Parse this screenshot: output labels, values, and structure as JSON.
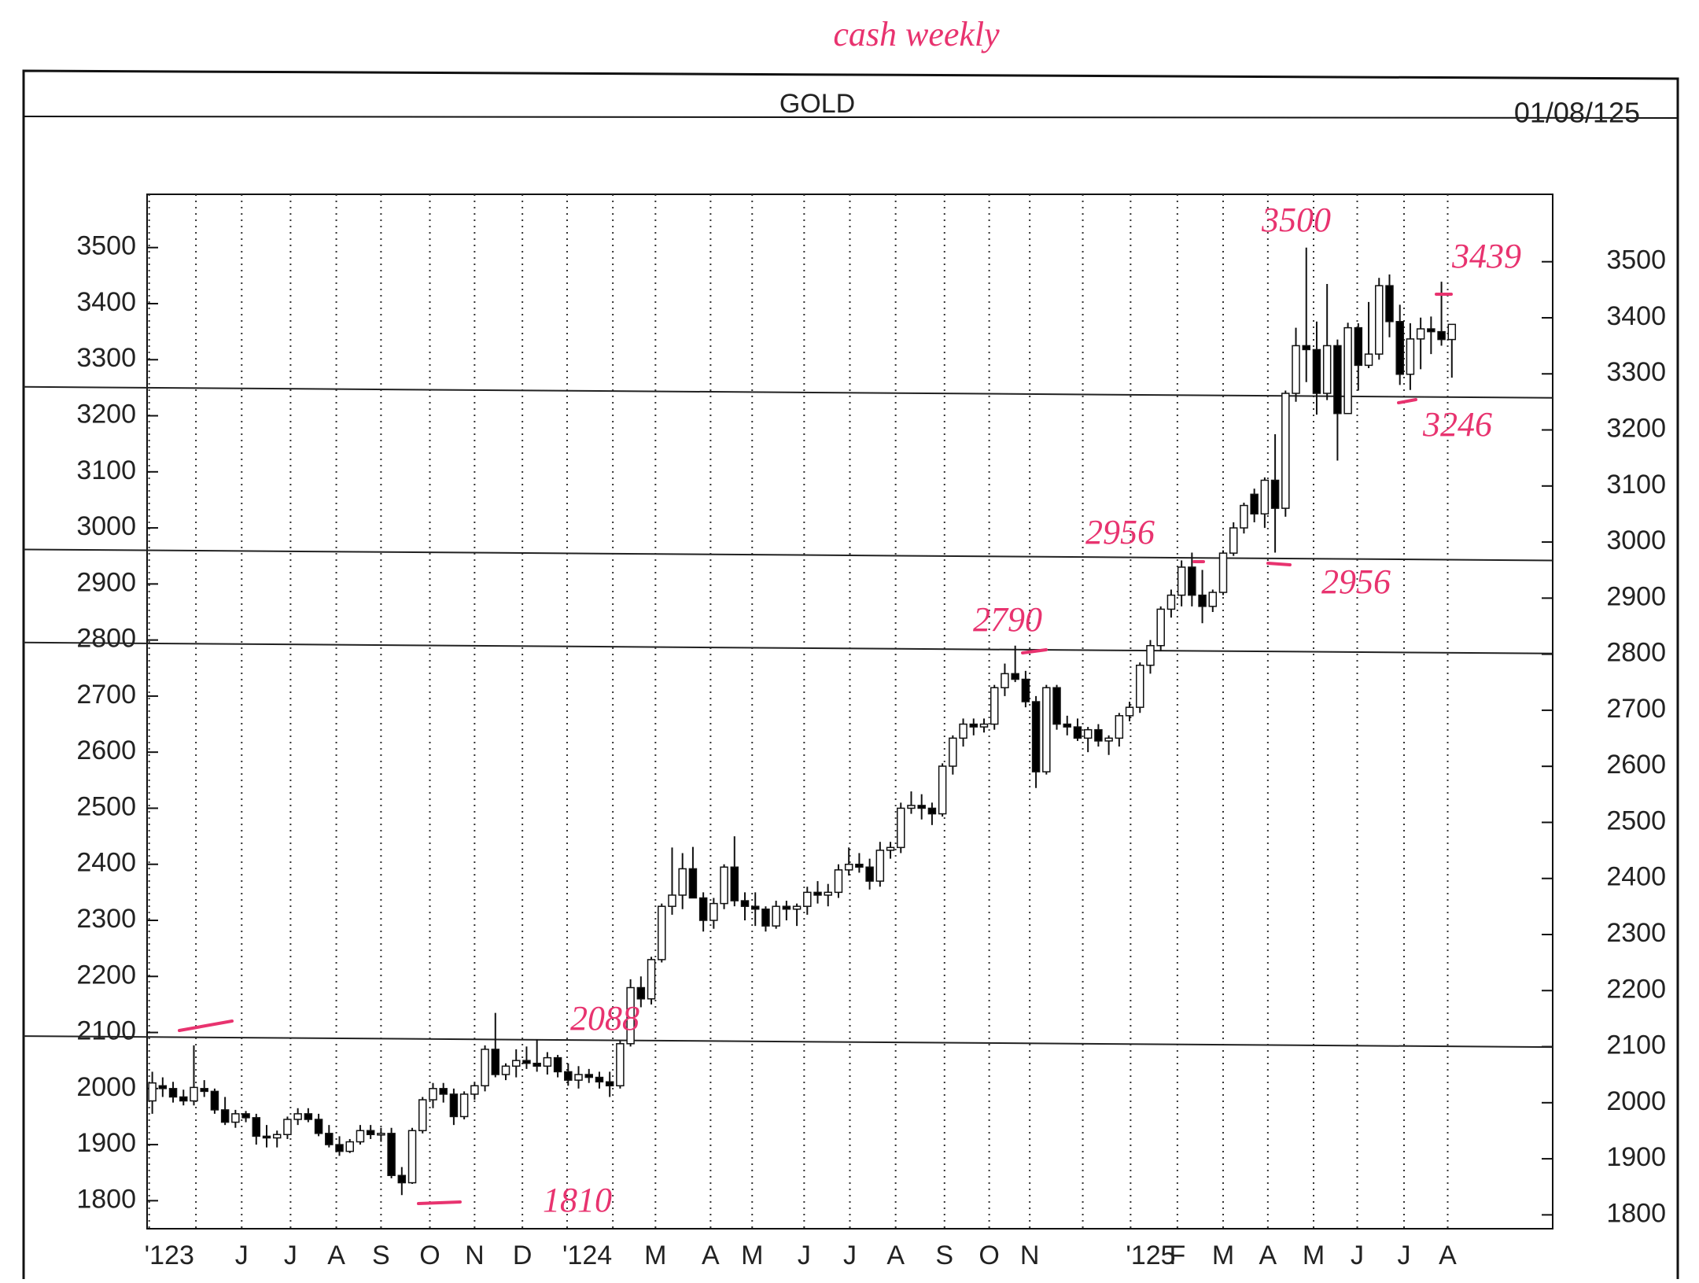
{
  "chart_data": {
    "type": "candlestick",
    "note_title": "cash weekly",
    "title": "GOLD",
    "date": "01/08/125",
    "open": [
      1978,
      2005,
      2000,
      1985,
      1978,
      2000,
      1995,
      1962,
      1940,
      1955,
      1948,
      1915,
      1912,
      1918,
      1945,
      1955,
      1945,
      1920,
      1900,
      1888,
      1905,
      1925,
      1918,
      1920,
      1845,
      1832,
      1925,
      1980,
      2000,
      1990,
      1950,
      1990,
      2005,
      2070,
      2025,
      2040,
      2050,
      2045,
      2040,
      2055,
      2030,
      2015,
      2025,
      2020,
      2012,
      2005,
      2080,
      2180,
      2160,
      2230,
      2325,
      2345,
      2392,
      2340,
      2300,
      2330,
      2395,
      2335,
      2325,
      2320,
      2290,
      2325,
      2320,
      2325,
      2350,
      2345,
      2350,
      2390,
      2400,
      2395,
      2370,
      2425,
      2430,
      2500,
      2505,
      2500,
      2490,
      2575,
      2625,
      2650,
      2645,
      2650,
      2715,
      2740,
      2730,
      2690,
      2565,
      2715,
      2650,
      2645,
      2625,
      2640,
      2620,
      2625,
      2665,
      2680,
      2755,
      2790,
      2855,
      2880,
      2930,
      2880,
      2860,
      2885,
      2955,
      3000,
      3060,
      3025,
      3085,
      3035,
      3240,
      3325,
      3318,
      3240,
      3325,
      3204,
      3357,
      3290,
      3310,
      3432,
      3368,
      3274,
      3337,
      3355,
      3350,
      3336
    ],
    "high": [
      2030,
      2020,
      2012,
      1998,
      2077,
      2015,
      2000,
      1985,
      1962,
      1960,
      1955,
      1935,
      1925,
      1950,
      1965,
      1965,
      1955,
      1935,
      1915,
      1910,
      1935,
      1935,
      1930,
      1930,
      1860,
      1930,
      1985,
      2010,
      2010,
      2000,
      1995,
      2010,
      2077,
      2135,
      2045,
      2070,
      2075,
      2088,
      2065,
      2060,
      2045,
      2040,
      2035,
      2030,
      2030,
      2085,
      2195,
      2200,
      2235,
      2330,
      2430,
      2420,
      2431,
      2350,
      2340,
      2400,
      2450,
      2350,
      2350,
      2325,
      2335,
      2335,
      2330,
      2360,
      2370,
      2365,
      2400,
      2430,
      2420,
      2410,
      2440,
      2440,
      2510,
      2530,
      2525,
      2510,
      2580,
      2630,
      2660,
      2660,
      2660,
      2720,
      2758,
      2790,
      2745,
      2700,
      2720,
      2720,
      2665,
      2660,
      2645,
      2650,
      2630,
      2670,
      2690,
      2760,
      2800,
      2860,
      2890,
      2942,
      2956,
      2925,
      2890,
      2960,
      3010,
      3045,
      3070,
      3090,
      3167,
      3245,
      3357,
      3500,
      3368,
      3435,
      3336,
      3366,
      3365,
      3403,
      3446,
      3452,
      3398,
      3365,
      3375,
      3377,
      3439,
      3363
    ],
    "low": [
      1955,
      1985,
      1975,
      1970,
      1970,
      1985,
      1955,
      1935,
      1930,
      1940,
      1900,
      1895,
      1895,
      1910,
      1935,
      1940,
      1915,
      1895,
      1880,
      1885,
      1900,
      1910,
      1905,
      1840,
      1810,
      1830,
      1920,
      1965,
      1975,
      1935,
      1945,
      1980,
      1995,
      2020,
      2015,
      2020,
      2035,
      2030,
      2025,
      2020,
      2005,
      2000,
      2010,
      2000,
      1985,
      2000,
      2075,
      2145,
      2150,
      2225,
      2310,
      2320,
      2345,
      2280,
      2285,
      2320,
      2325,
      2300,
      2290,
      2280,
      2285,
      2300,
      2290,
      2310,
      2330,
      2325,
      2340,
      2380,
      2385,
      2355,
      2360,
      2410,
      2420,
      2490,
      2480,
      2470,
      2485,
      2560,
      2610,
      2630,
      2635,
      2640,
      2700,
      2725,
      2680,
      2536,
      2560,
      2640,
      2630,
      2620,
      2600,
      2610,
      2595,
      2610,
      2655,
      2670,
      2740,
      2780,
      2840,
      2860,
      2860,
      2830,
      2850,
      2880,
      2950,
      2990,
      3010,
      3000,
      2956,
      3020,
      3225,
      3260,
      3202,
      3228,
      3120,
      3204,
      3245,
      3285,
      3300,
      3340,
      3255,
      3246,
      3283,
      3310,
      3325,
      3268
    ],
    "close": [
      2010,
      2000,
      1985,
      1978,
      2002,
      1995,
      1962,
      1940,
      1955,
      1948,
      1915,
      1912,
      1918,
      1945,
      1955,
      1945,
      1920,
      1900,
      1888,
      1905,
      1925,
      1918,
      1920,
      1845,
      1832,
      1925,
      1980,
      2000,
      1990,
      1950,
      1990,
      2005,
      2070,
      2025,
      2040,
      2050,
      2045,
      2040,
      2055,
      2030,
      2015,
      2025,
      2020,
      2012,
      2005,
      2080,
      2180,
      2160,
      2230,
      2325,
      2345,
      2392,
      2340,
      2300,
      2330,
      2395,
      2335,
      2325,
      2320,
      2290,
      2325,
      2320,
      2325,
      2350,
      2345,
      2350,
      2390,
      2400,
      2395,
      2370,
      2425,
      2430,
      2500,
      2505,
      2500,
      2490,
      2575,
      2625,
      2650,
      2645,
      2650,
      2715,
      2740,
      2730,
      2690,
      2565,
      2715,
      2650,
      2645,
      2625,
      2640,
      2620,
      2625,
      2665,
      2680,
      2755,
      2790,
      2855,
      2880,
      2930,
      2880,
      2860,
      2885,
      2955,
      3000,
      3040,
      3025,
      3085,
      3035,
      3240,
      3325,
      3318,
      3240,
      3325,
      3204,
      3357,
      3290,
      3310,
      3432,
      3368,
      3274,
      3337,
      3355,
      3350,
      3336,
      3363
    ],
    "up_color": "#ffffff",
    "down_color": "#000000",
    "xlim": [
      -0.5,
      134.7
    ],
    "xticks": [
      {
        "value": -0.3,
        "label": "'123"
      },
      {
        "value": 8.6,
        "label": "J"
      },
      {
        "value": 13.3,
        "label": "J"
      },
      {
        "value": 17.7,
        "label": "A"
      },
      {
        "value": 22.0,
        "label": "S"
      },
      {
        "value": 26.7,
        "label": "O"
      },
      {
        "value": 31.0,
        "label": "N"
      },
      {
        "value": 35.6,
        "label": "D"
      },
      {
        "value": 39.9,
        "label": "'124"
      },
      {
        "value": 48.4,
        "label": "M"
      },
      {
        "value": 53.7,
        "label": "A"
      },
      {
        "value": 57.7,
        "label": "M"
      },
      {
        "value": 62.7,
        "label": "J"
      },
      {
        "value": 67.1,
        "label": "J"
      },
      {
        "value": 71.5,
        "label": "A"
      },
      {
        "value": 76.2,
        "label": "S"
      },
      {
        "value": 80.5,
        "label": "O"
      },
      {
        "value": 84.4,
        "label": "N"
      },
      {
        "value": 94.1,
        "label": "'125"
      },
      {
        "value": 98.6,
        "label": "F"
      },
      {
        "value": 103.0,
        "label": "M"
      },
      {
        "value": 107.3,
        "label": "A"
      },
      {
        "value": 111.7,
        "label": "M"
      },
      {
        "value": 115.9,
        "label": "J"
      },
      {
        "value": 120.4,
        "label": "J"
      },
      {
        "value": 124.6,
        "label": "A"
      }
    ],
    "xminor": [
      4.2,
      44.3,
      89.5
    ],
    "ylim": [
      1750,
      3595
    ],
    "yticks": [
      1800,
      1900,
      2000,
      2100,
      2200,
      2300,
      2400,
      2500,
      2600,
      2700,
      2800,
      2900,
      3000,
      3100,
      3200,
      3300,
      3400,
      3500
    ],
    "grid": "x",
    "levels": [
      2088,
      2790,
      2956,
      3246
    ],
    "annotations": [
      "3500",
      "3439",
      "3246",
      "2956",
      "2956",
      "2790",
      "2088",
      "1810"
    ],
    "annotation_color": "#e8336f"
  }
}
